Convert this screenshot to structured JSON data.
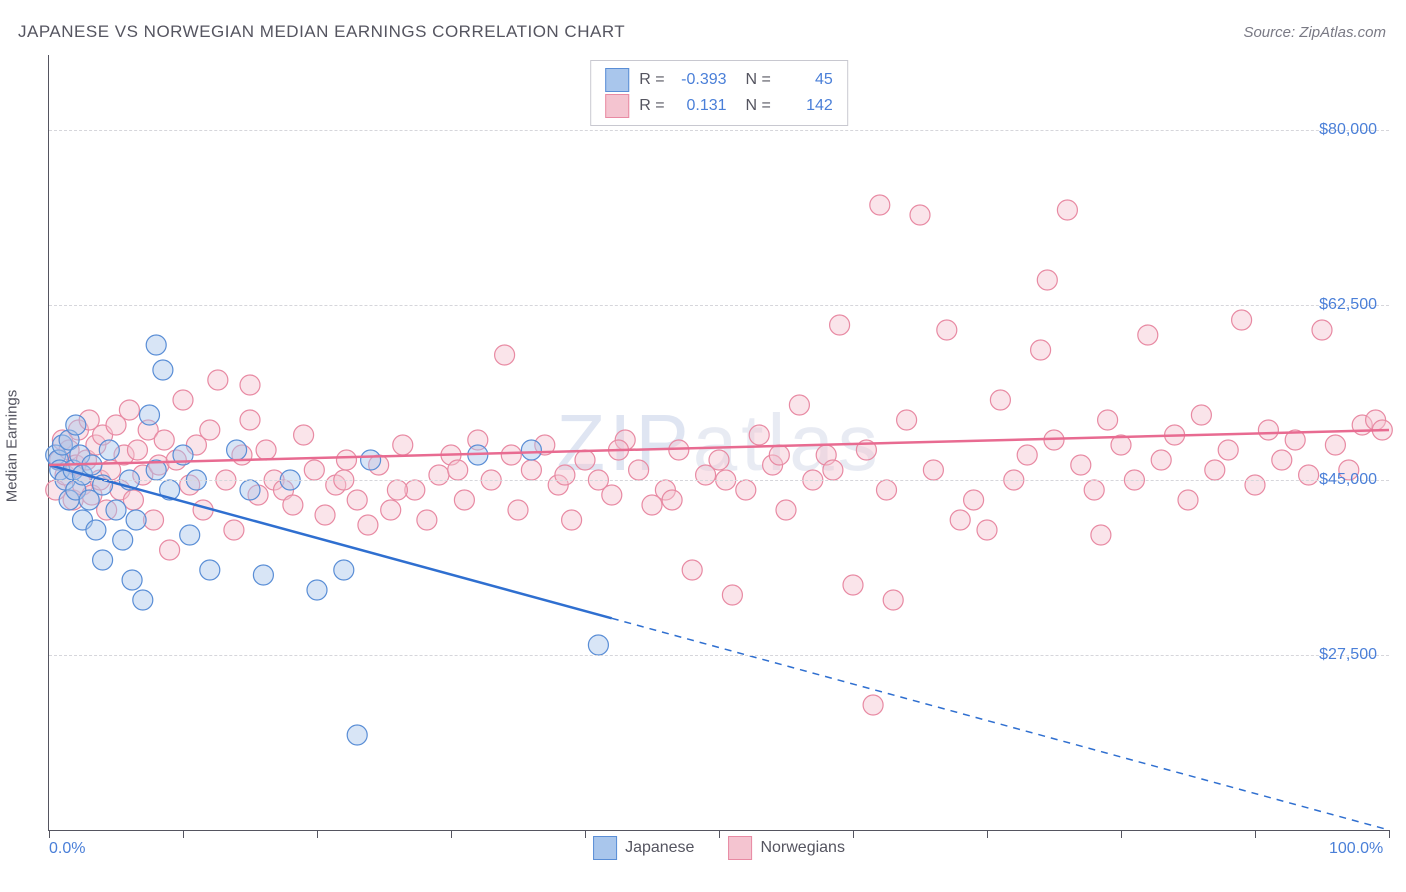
{
  "title": "JAPANESE VS NORWEGIAN MEDIAN EARNINGS CORRELATION CHART",
  "source": "Source: ZipAtlas.com",
  "watermark": "ZIPatlas",
  "y_axis_label": "Median Earnings",
  "chart": {
    "type": "scatter-correlation",
    "background_color": "#ffffff",
    "grid_color": "#d6d6db",
    "axis_color": "#555560",
    "label_color": "#4a7fd8",
    "xlim": [
      0,
      100
    ],
    "ylim": [
      10000,
      87500
    ],
    "x_ticks": [
      0,
      10,
      20,
      30,
      40,
      50,
      60,
      70,
      80,
      90,
      100
    ],
    "x_tick_labels": {
      "0": "0.0%",
      "100": "100.0%"
    },
    "y_grid": [
      27500,
      45000,
      62500,
      80000
    ],
    "y_tick_labels": [
      "$27,500",
      "$45,000",
      "$62,500",
      "$80,000"
    ],
    "marker_radius": 10,
    "marker_opacity": 0.45,
    "line_width": 2.5,
    "series": [
      {
        "name": "Japanese",
        "color_fill": "#a9c6ec",
        "color_stroke": "#5a8ed6",
        "line_color": "#2f6fd0",
        "R": "-0.393",
        "N": "45",
        "trend": {
          "x1": 0,
          "y1": 46500,
          "x2": 100,
          "y2": 10000,
          "solid_until_x": 42
        },
        "points": [
          [
            0.5,
            47500
          ],
          [
            0.7,
            47000
          ],
          [
            0.8,
            46000
          ],
          [
            1.0,
            48500
          ],
          [
            1.2,
            45000
          ],
          [
            1.5,
            49000
          ],
          [
            1.5,
            43000
          ],
          [
            1.8,
            46000
          ],
          [
            2.0,
            50500
          ],
          [
            2.0,
            44000
          ],
          [
            2.3,
            47500
          ],
          [
            2.5,
            41000
          ],
          [
            2.5,
            45500
          ],
          [
            3.0,
            43000
          ],
          [
            3.2,
            46500
          ],
          [
            3.5,
            40000
          ],
          [
            4.0,
            44500
          ],
          [
            4.0,
            37000
          ],
          [
            4.5,
            48000
          ],
          [
            5.0,
            42000
          ],
          [
            5.5,
            39000
          ],
          [
            6.0,
            45000
          ],
          [
            6.2,
            35000
          ],
          [
            6.5,
            41000
          ],
          [
            7.0,
            33000
          ],
          [
            7.5,
            51500
          ],
          [
            8.0,
            46000
          ],
          [
            8.0,
            58500
          ],
          [
            8.5,
            56000
          ],
          [
            9.0,
            44000
          ],
          [
            10.0,
            47500
          ],
          [
            10.5,
            39500
          ],
          [
            11.0,
            45000
          ],
          [
            12.0,
            36000
          ],
          [
            14.0,
            48000
          ],
          [
            15.0,
            44000
          ],
          [
            16.0,
            35500
          ],
          [
            18.0,
            45000
          ],
          [
            20.0,
            34000
          ],
          [
            22.0,
            36000
          ],
          [
            23.0,
            19500
          ],
          [
            24.0,
            47000
          ],
          [
            32.0,
            47500
          ],
          [
            36.0,
            48000
          ],
          [
            41.0,
            28500
          ]
        ]
      },
      {
        "name": "Norwegians",
        "color_fill": "#f4c4d0",
        "color_stroke": "#e88aa3",
        "line_color": "#e86b91",
        "R": "0.131",
        "N": "142",
        "trend": {
          "x1": 0,
          "y1": 46500,
          "x2": 100,
          "y2": 50000,
          "solid_until_x": 100
        },
        "points": [
          [
            0.5,
            44000
          ],
          [
            0.8,
            47000
          ],
          [
            1.0,
            49000
          ],
          [
            1.2,
            45500
          ],
          [
            1.5,
            48000
          ],
          [
            1.8,
            43000
          ],
          [
            2.0,
            46500
          ],
          [
            2.2,
            50000
          ],
          [
            2.5,
            44500
          ],
          [
            2.8,
            47000
          ],
          [
            3.0,
            51000
          ],
          [
            3.2,
            43500
          ],
          [
            3.5,
            48500
          ],
          [
            3.8,
            45000
          ],
          [
            4.0,
            49500
          ],
          [
            4.3,
            42000
          ],
          [
            4.6,
            46000
          ],
          [
            5.0,
            50500
          ],
          [
            5.3,
            44000
          ],
          [
            5.6,
            47500
          ],
          [
            6.0,
            52000
          ],
          [
            6.3,
            43000
          ],
          [
            6.6,
            48000
          ],
          [
            7.0,
            45500
          ],
          [
            7.4,
            50000
          ],
          [
            7.8,
            41000
          ],
          [
            8.2,
            46500
          ],
          [
            8.6,
            49000
          ],
          [
            9.0,
            38000
          ],
          [
            9.5,
            47000
          ],
          [
            10.0,
            53000
          ],
          [
            10.5,
            44500
          ],
          [
            11.0,
            48500
          ],
          [
            11.5,
            42000
          ],
          [
            12.0,
            50000
          ],
          [
            12.6,
            55000
          ],
          [
            13.2,
            45000
          ],
          [
            13.8,
            40000
          ],
          [
            14.4,
            47500
          ],
          [
            15.0,
            51000
          ],
          [
            15.6,
            43500
          ],
          [
            16.2,
            48000
          ],
          [
            16.8,
            45000
          ],
          [
            17.5,
            44000
          ],
          [
            18.2,
            42500
          ],
          [
            19.0,
            49500
          ],
          [
            19.8,
            46000
          ],
          [
            20.6,
            41500
          ],
          [
            21.4,
            44500
          ],
          [
            22.2,
            47000
          ],
          [
            23.0,
            43000
          ],
          [
            23.8,
            40500
          ],
          [
            24.6,
            46500
          ],
          [
            25.5,
            42000
          ],
          [
            26.4,
            48500
          ],
          [
            27.3,
            44000
          ],
          [
            28.2,
            41000
          ],
          [
            29.1,
            45500
          ],
          [
            30.0,
            47500
          ],
          [
            31.0,
            43000
          ],
          [
            32.0,
            49000
          ],
          [
            33.0,
            45000
          ],
          [
            34.0,
            57500
          ],
          [
            35.0,
            42000
          ],
          [
            36.0,
            46000
          ],
          [
            37.0,
            48500
          ],
          [
            38.0,
            44500
          ],
          [
            39.0,
            41000
          ],
          [
            40.0,
            47000
          ],
          [
            41.0,
            45000
          ],
          [
            42.0,
            43500
          ],
          [
            43.0,
            49000
          ],
          [
            44.0,
            46000
          ],
          [
            45.0,
            42500
          ],
          [
            46.0,
            44000
          ],
          [
            47.0,
            48000
          ],
          [
            48.0,
            36000
          ],
          [
            49.0,
            45500
          ],
          [
            50.0,
            47000
          ],
          [
            51.0,
            33500
          ],
          [
            52.0,
            44000
          ],
          [
            53.0,
            49500
          ],
          [
            54.0,
            46500
          ],
          [
            55.0,
            42000
          ],
          [
            56.0,
            52500
          ],
          [
            57.0,
            45000
          ],
          [
            58.0,
            47500
          ],
          [
            59.0,
            60500
          ],
          [
            60.0,
            34500
          ],
          [
            61.0,
            48000
          ],
          [
            62.0,
            72500
          ],
          [
            62.5,
            44000
          ],
          [
            63.0,
            33000
          ],
          [
            64.0,
            51000
          ],
          [
            65.0,
            71500
          ],
          [
            66.0,
            46000
          ],
          [
            67.0,
            60000
          ],
          [
            68.0,
            41000
          ],
          [
            69.0,
            43000
          ],
          [
            70.0,
            40000
          ],
          [
            71.0,
            53000
          ],
          [
            72.0,
            45000
          ],
          [
            73.0,
            47500
          ],
          [
            74.0,
            58000
          ],
          [
            74.5,
            65000
          ],
          [
            75.0,
            49000
          ],
          [
            76.0,
            72000
          ],
          [
            77.0,
            46500
          ],
          [
            78.0,
            44000
          ],
          [
            78.5,
            39500
          ],
          [
            79.0,
            51000
          ],
          [
            80.0,
            48500
          ],
          [
            81.0,
            45000
          ],
          [
            82.0,
            59500
          ],
          [
            83.0,
            47000
          ],
          [
            84.0,
            49500
          ],
          [
            85.0,
            43000
          ],
          [
            86.0,
            51500
          ],
          [
            87.0,
            46000
          ],
          [
            88.0,
            48000
          ],
          [
            89.0,
            61000
          ],
          [
            90.0,
            44500
          ],
          [
            91.0,
            50000
          ],
          [
            92.0,
            47000
          ],
          [
            93.0,
            49000
          ],
          [
            94.0,
            45500
          ],
          [
            95.0,
            60000
          ],
          [
            96.0,
            48500
          ],
          [
            97.0,
            46000
          ],
          [
            98.0,
            50500
          ],
          [
            99.0,
            51000
          ],
          [
            99.5,
            50000
          ],
          [
            22.0,
            45000
          ],
          [
            26.0,
            44000
          ],
          [
            30.5,
            46000
          ],
          [
            34.5,
            47500
          ],
          [
            38.5,
            45500
          ],
          [
            42.5,
            48000
          ],
          [
            46.5,
            43000
          ],
          [
            50.5,
            45000
          ],
          [
            54.5,
            47500
          ],
          [
            58.5,
            46000
          ],
          [
            15.0,
            54500
          ],
          [
            61.5,
            22500
          ]
        ]
      }
    ]
  },
  "legend_bottom": [
    {
      "label": "Japanese",
      "fill": "#a9c6ec",
      "stroke": "#5a8ed6"
    },
    {
      "label": "Norwegians",
      "fill": "#f4c4d0",
      "stroke": "#e88aa3"
    }
  ]
}
